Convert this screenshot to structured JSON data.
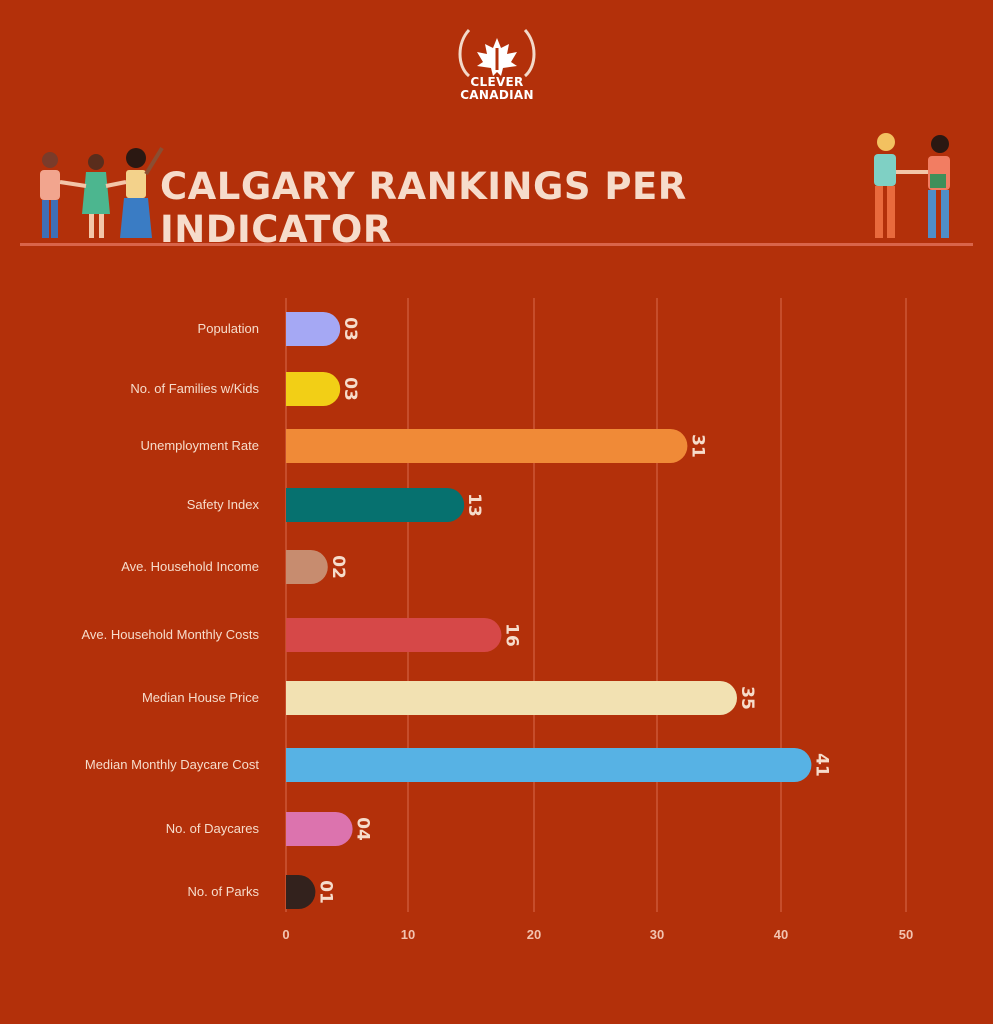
{
  "logo": {
    "line1": "CLEVER",
    "line2": "CANADIAN"
  },
  "header": {
    "title": "CALGARY RANKINGS PER INDICATOR"
  },
  "chart_data": {
    "type": "bar",
    "orientation": "horizontal",
    "title": "CALGARY RANKINGS PER INDICATOR",
    "categories": [
      "Population",
      "No. of Families w/Kids",
      "Unemployment Rate",
      "Safety Index",
      "Ave. Household Income",
      "Ave. Household Monthly Costs",
      "Median House Price",
      "Median Monthly Daycare Cost",
      "No. of Daycares",
      "No. of Parks"
    ],
    "values": [
      3,
      3,
      31,
      13,
      2,
      16,
      35,
      41,
      4,
      1
    ],
    "value_labels": [
      "03",
      "03",
      "31",
      "13",
      "02",
      "16",
      "35",
      "41",
      "04",
      "01"
    ],
    "colors": [
      "#a5a8f4",
      "#f2cf16",
      "#f08a37",
      "#06716f",
      "#c78c6f",
      "#d64848",
      "#f2e1b2",
      "#57b2e4",
      "#dc73ae",
      "#33221d"
    ],
    "xlim": [
      0,
      50
    ],
    "x_ticks": [
      "0",
      "10",
      "20",
      "30",
      "40",
      "50"
    ],
    "grid": true,
    "xlabel": "",
    "ylabel": ""
  }
}
